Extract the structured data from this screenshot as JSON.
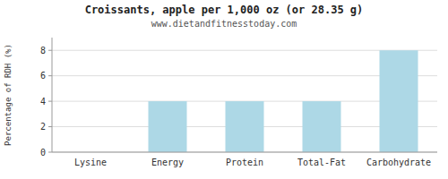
{
  "chart_data": {
    "type": "bar",
    "title": "Croissants, apple per 1,000 oz (or 28.35 g)",
    "subtitle": "www.dietandfitnesstoday.com",
    "categories": [
      "Lysine",
      "Energy",
      "Protein",
      "Total-Fat",
      "Carbohydrate"
    ],
    "values": [
      0,
      4,
      4,
      4,
      8
    ],
    "color": "#add8e6",
    "ylabel": "Percentage of RDH (%)",
    "ylim": [
      0,
      9
    ],
    "yticks": [
      0,
      2,
      4,
      6,
      8
    ],
    "grid": true
  }
}
